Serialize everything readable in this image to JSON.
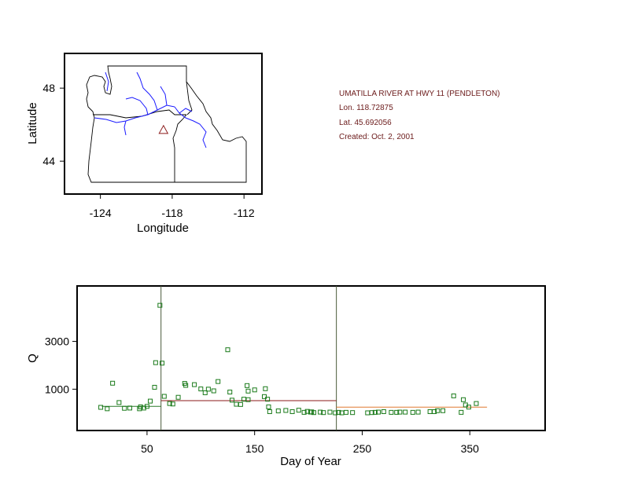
{
  "colors": {
    "frame": "#000000",
    "rivers": "#1a1aff",
    "site_marker": "#8b1a1a",
    "points": "#1a7a1a",
    "divider": "#4a5a3a",
    "seg1_line": "#2a7a2a",
    "seg2_line": "#8b1a1a",
    "seg3_line": "#e07a30",
    "info_text": "#6b1a1a"
  },
  "info": {
    "site": "UMATILLA RIVER AT HWY 11 (PENDLETON)",
    "lon": "Lon. 118.72875",
    "lat": "Lat. 45.692056",
    "created": "Created:   Oct. 2, 2001"
  },
  "chart_data": [
    {
      "type": "map",
      "xlabel": "Longitude",
      "ylabel": "Latitude",
      "xlim": [
        -127,
        -110.5
      ],
      "ylim": [
        42.2,
        49.9
      ],
      "xticks": [
        -124,
        -118,
        -112
      ],
      "xtick_labels": [
        "-124",
        "-118",
        "-112"
      ],
      "yticks": [
        44,
        48
      ],
      "ytick_labels": [
        "44",
        "48"
      ],
      "site": {
        "lon": -118.72875,
        "lat": 45.692056,
        "marker": "triangle"
      }
    },
    {
      "type": "scatter",
      "xlabel": "Day of Year",
      "ylabel": "Q",
      "xlim": [
        -15,
        420
      ],
      "ylim": [
        -730,
        5320
      ],
      "xticks": [
        50,
        150,
        250,
        350
      ],
      "yticks": [
        1000,
        3000
      ],
      "ytick_labels": [
        "1000",
        "3000"
      ],
      "grid": false,
      "dividers": [
        63,
        226
      ],
      "segments": [
        {
          "x": [
            8,
            63
          ],
          "y": 280
        },
        {
          "x": [
            63,
            226
          ],
          "y": 520
        },
        {
          "x": [
            226,
            366
          ],
          "y": 250
        }
      ],
      "points": [
        [
          7,
          240
        ],
        [
          13,
          180
        ],
        [
          18,
          1250
        ],
        [
          24,
          440
        ],
        [
          29,
          200
        ],
        [
          34,
          210
        ],
        [
          43,
          180
        ],
        [
          44,
          260
        ],
        [
          47,
          210
        ],
        [
          50,
          280
        ],
        [
          53,
          500
        ],
        [
          57,
          1080
        ],
        [
          58,
          2110
        ],
        [
          62,
          4510
        ],
        [
          64,
          2090
        ],
        [
          66,
          700
        ],
        [
          71,
          400
        ],
        [
          74,
          380
        ],
        [
          79,
          660
        ],
        [
          85,
          1240
        ],
        [
          86,
          1160
        ],
        [
          94,
          1190
        ],
        [
          100,
          1010
        ],
        [
          104,
          850
        ],
        [
          107,
          1000
        ],
        [
          112,
          930
        ],
        [
          116,
          1320
        ],
        [
          125,
          2650
        ],
        [
          127,
          880
        ],
        [
          129,
          540
        ],
        [
          133,
          370
        ],
        [
          137,
          360
        ],
        [
          140,
          580
        ],
        [
          143,
          1150
        ],
        [
          144,
          560
        ],
        [
          144,
          920
        ],
        [
          150,
          970
        ],
        [
          159,
          690
        ],
        [
          160,
          1020
        ],
        [
          162,
          580
        ],
        [
          163,
          260
        ],
        [
          164,
          60
        ],
        [
          172,
          90
        ],
        [
          179,
          110
        ],
        [
          185,
          60
        ],
        [
          191,
          120
        ],
        [
          196,
          30
        ],
        [
          199,
          70
        ],
        [
          202,
          40
        ],
        [
          203,
          50
        ],
        [
          205,
          20
        ],
        [
          211,
          40
        ],
        [
          214,
          20
        ],
        [
          220,
          40
        ],
        [
          225,
          10
        ],
        [
          228,
          30
        ],
        [
          231,
          10
        ],
        [
          235,
          30
        ],
        [
          241,
          20
        ],
        [
          255,
          10
        ],
        [
          259,
          20
        ],
        [
          262,
          30
        ],
        [
          265,
          40
        ],
        [
          270,
          60
        ],
        [
          277,
          30
        ],
        [
          282,
          30
        ],
        [
          285,
          40
        ],
        [
          290,
          40
        ],
        [
          297,
          30
        ],
        [
          302,
          40
        ],
        [
          313,
          60
        ],
        [
          317,
          60
        ],
        [
          320,
          100
        ],
        [
          325,
          100
        ],
        [
          335,
          720
        ],
        [
          342,
          30
        ],
        [
          344,
          560
        ],
        [
          346,
          340
        ],
        [
          349,
          250
        ],
        [
          356,
          400
        ]
      ]
    }
  ]
}
